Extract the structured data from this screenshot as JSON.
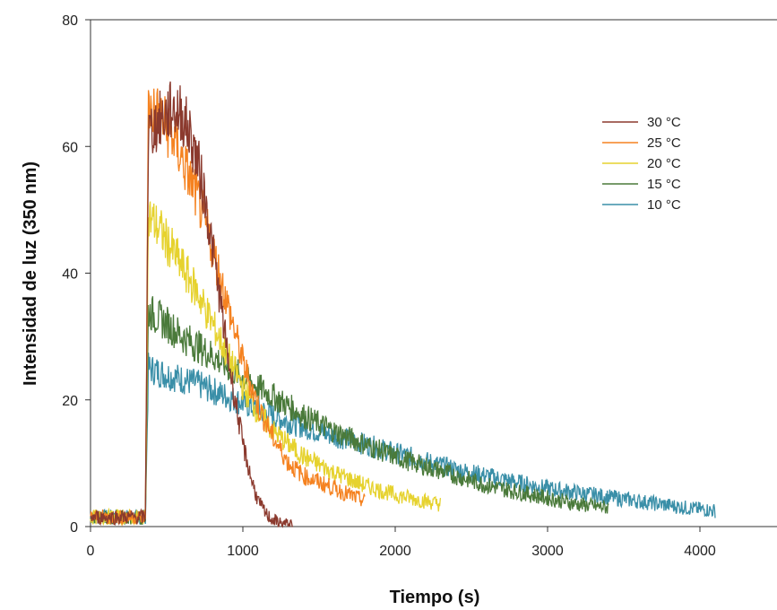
{
  "chart_data": {
    "type": "line",
    "xlabel": "Tiempo (s)",
    "ylabel": "Intensidad de luz (350 nm)",
    "xlim": [
      0,
      4400
    ],
    "ylim": [
      0,
      80
    ],
    "xticks": [
      0,
      1000,
      2000,
      3000,
      4000
    ],
    "yticks": [
      0,
      20,
      40,
      60,
      80
    ],
    "grid": false,
    "legend_position": "top-right",
    "series": [
      {
        "name": "30 °C",
        "color": "#8b3a2e",
        "x": [
          0,
          340,
          360,
          380,
          450,
          500,
          550,
          600,
          650,
          700,
          750,
          800,
          850,
          900,
          950,
          1000,
          1050,
          1100,
          1150,
          1200,
          1250,
          1300,
          1330
        ],
        "y": [
          1.5,
          1.5,
          1.5,
          62,
          64,
          65,
          66,
          65,
          62,
          58,
          52,
          44,
          36,
          27,
          20,
          13,
          8,
          4,
          2,
          1,
          0.5,
          0.3,
          0.3
        ]
      },
      {
        "name": "25 °C",
        "color": "#f58220",
        "x": [
          0,
          340,
          360,
          380,
          450,
          500,
          550,
          600,
          700,
          800,
          900,
          1000,
          1100,
          1200,
          1300,
          1400,
          1500,
          1600,
          1700,
          1800
        ],
        "y": [
          1.5,
          1.5,
          1.5,
          66,
          65,
          63,
          61,
          58,
          52,
          44,
          35,
          26,
          19,
          14,
          10,
          8,
          7,
          6,
          5,
          4
        ]
      },
      {
        "name": "20 °C",
        "color": "#e6d22e",
        "x": [
          0,
          340,
          360,
          380,
          450,
          500,
          600,
          700,
          800,
          900,
          1000,
          1100,
          1200,
          1400,
          1600,
          1800,
          2000,
          2200,
          2300
        ],
        "y": [
          1.5,
          1.5,
          1.5,
          49,
          47,
          45,
          41,
          37,
          32,
          27,
          22,
          18,
          15,
          11,
          8.5,
          6.5,
          5,
          4,
          3.5
        ]
      },
      {
        "name": "15 °C",
        "color": "#4a7a3a",
        "x": [
          0,
          340,
          360,
          380,
          500,
          600,
          800,
          1000,
          1200,
          1400,
          1600,
          1800,
          2000,
          2200,
          2400,
          2600,
          2800,
          3000,
          3200,
          3400
        ],
        "y": [
          1.5,
          1.5,
          1.5,
          34,
          32,
          30,
          27,
          23.5,
          20.5,
          17.5,
          15,
          13,
          11,
          9.5,
          8,
          6.5,
          5.5,
          4.5,
          3.5,
          3
        ]
      },
      {
        "name": "10 °C",
        "color": "#3a8fa8",
        "x": [
          0,
          340,
          360,
          380,
          500,
          700,
          900,
          1100,
          1300,
          1500,
          1800,
          2100,
          2400,
          2700,
          3000,
          3300,
          3600,
          3900,
          4100
        ],
        "y": [
          1.5,
          1.5,
          1.5,
          25,
          24,
          22.5,
          20.5,
          18.5,
          16.5,
          15,
          13,
          11,
          9,
          7.5,
          6,
          5,
          4,
          3,
          2.5
        ]
      }
    ]
  }
}
